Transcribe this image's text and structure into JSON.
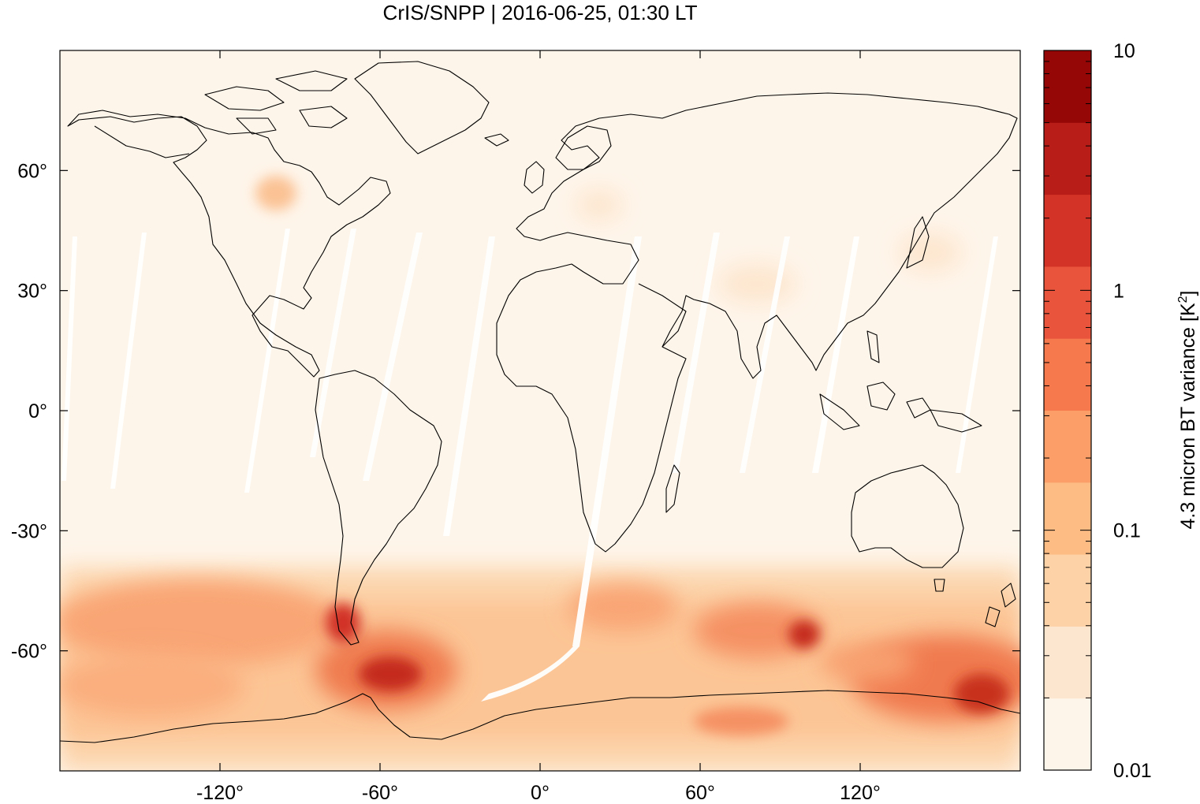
{
  "title": "CrIS/SNPP | 2016-06-25, 01:30 LT",
  "map": {
    "projection": "plate-carree",
    "lon_range": [
      -180,
      180
    ],
    "lat_range": [
      -90,
      90
    ],
    "lon_ticks": [
      -120,
      -60,
      0,
      60,
      120
    ],
    "lat_ticks": [
      60,
      30,
      0,
      -30,
      -60
    ],
    "lon_tick_labels": [
      "-120°",
      "-60°",
      "0°",
      "60°",
      "120°"
    ],
    "lat_tick_labels": [
      "60°",
      "30°",
      "0°",
      "-30°",
      "-60°"
    ],
    "background_color": "#fef5ea"
  },
  "colorbar": {
    "label_main": "4.3 micron BT variance [K",
    "label_sup": "2",
    "label_close": "]",
    "scale": "log",
    "range": [
      0.01,
      10
    ],
    "tick_values": [
      0.01,
      0.1,
      1,
      10
    ],
    "tick_labels": [
      "0.01",
      "0.1",
      "1",
      "10"
    ],
    "colors": [
      "#fef5ea",
      "#fde6cf",
      "#fdd2a6",
      "#fcbc84",
      "#fb9e68",
      "#f6784d",
      "#e8553c",
      "#d23326",
      "#b91d18",
      "#950707"
    ]
  }
}
